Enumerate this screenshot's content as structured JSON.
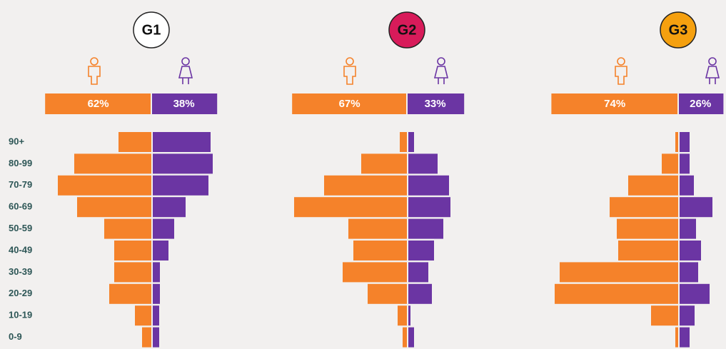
{
  "chart_data": {
    "type": "pyramid",
    "categories": [
      "90+",
      "80-99",
      "70-79",
      "60-69",
      "50-59",
      "40-49",
      "30-39",
      "20-29",
      "10-19",
      "0-9"
    ],
    "xlim": [
      0,
      180
    ],
    "groups": [
      {
        "title": "G1",
        "color": "#ffffff",
        "split": {
          "values": [
            62,
            38
          ],
          "value_labels": [
            "62%",
            "38%"
          ]
        },
        "series": [
          {
            "color": "#f5822a",
            "values": [
              46,
              108,
              131,
              104,
              66,
              52,
              52,
              59,
              23,
              13
            ]
          },
          {
            "color": "#6b35a3",
            "values": [
              81,
              84,
              78,
              46,
              30,
              22,
              10,
              10,
              9,
              9
            ]
          }
        ]
      },
      {
        "title": "G2",
        "color": "#d81b5a",
        "split": {
          "values": [
            67,
            33
          ],
          "value_labels": [
            "67%",
            "33%"
          ]
        },
        "series": [
          {
            "color": "#f5822a",
            "values": [
              10,
              64,
              116,
              158,
              82,
              75,
              90,
              55,
              13,
              6
            ]
          },
          {
            "color": "#6b35a3",
            "values": [
              8,
              41,
              57,
              59,
              49,
              36,
              28,
              33,
              3,
              8
            ]
          }
        ]
      },
      {
        "title": "G3",
        "color": "#f5a00f",
        "split": {
          "values": [
            74,
            26
          ],
          "value_labels": [
            "74%",
            "26%"
          ]
        },
        "series": [
          {
            "color": "#f5822a",
            "values": [
              4,
              23,
              70,
              96,
              86,
              84,
              166,
              173,
              38,
              4
            ]
          },
          {
            "color": "#6b35a3",
            "values": [
              14,
              14,
              20,
              46,
              23,
              30,
              26,
              42,
              21,
              14
            ]
          }
        ]
      }
    ]
  }
}
